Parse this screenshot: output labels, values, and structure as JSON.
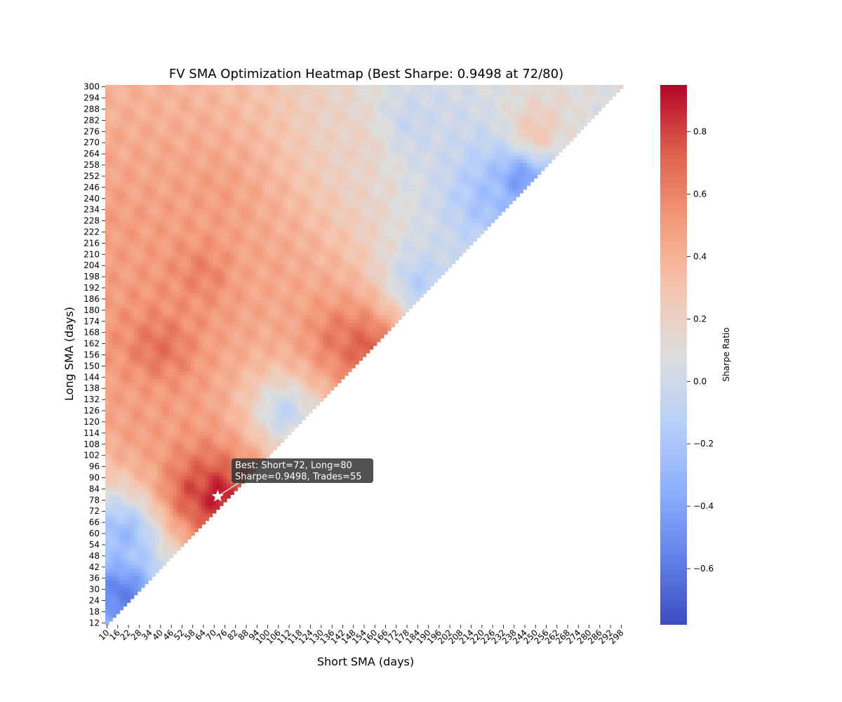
{
  "chart_data": {
    "type": "heatmap",
    "title": "FV SMA Optimization Heatmap (Best Sharpe: 0.9498 at 72/80)",
    "xlabel": "Short SMA (days)",
    "ylabel": "Long SMA (days)",
    "x_range": [
      10,
      300
    ],
    "y_range": [
      12,
      300
    ],
    "x_step": 2,
    "y_step": 2,
    "x_tick_labels": [
      "10",
      "16",
      "22",
      "28",
      "34",
      "40",
      "46",
      "52",
      "58",
      "64",
      "70",
      "76",
      "82",
      "88",
      "94",
      "100",
      "106",
      "112",
      "118",
      "124",
      "130",
      "136",
      "142",
      "148",
      "154",
      "160",
      "166",
      "172",
      "178",
      "184",
      "190",
      "196",
      "202",
      "208",
      "214",
      "220",
      "226",
      "232",
      "238",
      "244",
      "250",
      "256",
      "262",
      "268",
      "274",
      "280",
      "286",
      "292",
      "298"
    ],
    "y_tick_labels": [
      "300",
      "294",
      "288",
      "282",
      "276",
      "270",
      "264",
      "258",
      "252",
      "246",
      "240",
      "234",
      "228",
      "222",
      "216",
      "210",
      "204",
      "198",
      "192",
      "186",
      "180",
      "174",
      "168",
      "162",
      "156",
      "150",
      "144",
      "138",
      "132",
      "126",
      "120",
      "114",
      "108",
      "102",
      "96",
      "90",
      "84",
      "78",
      "72",
      "66",
      "60",
      "54",
      "48",
      "42",
      "36",
      "30",
      "24",
      "18",
      "12"
    ],
    "mask": "long > short only (upper-left triangle)",
    "colormap": "coolwarm",
    "colorbar": {
      "label": "Sharpe Ratio",
      "range": [
        -0.78,
        0.95
      ],
      "ticks": [
        "0.8",
        "0.6",
        "0.4",
        "0.2",
        "0.0",
        "−0.2",
        "−0.4",
        "−0.6"
      ]
    },
    "regions": [
      {
        "short": 72,
        "long": 80,
        "sharpe": 0.95
      },
      {
        "short": 60,
        "long": 82,
        "sharpe": 0.8
      },
      {
        "short": 154,
        "long": 160,
        "sharpe": 0.78
      },
      {
        "short": 140,
        "long": 165,
        "sharpe": 0.65
      },
      {
        "short": 40,
        "long": 160,
        "sharpe": 0.68
      },
      {
        "short": 64,
        "long": 200,
        "sharpe": 0.62
      },
      {
        "short": 30,
        "long": 120,
        "sharpe": 0.5
      },
      {
        "short": 100,
        "long": 200,
        "sharpe": 0.45
      },
      {
        "short": 70,
        "long": 240,
        "sharpe": 0.5
      },
      {
        "short": 20,
        "long": 220,
        "sharpe": 0.5
      },
      {
        "short": 18,
        "long": 28,
        "sharpe": -0.6
      },
      {
        "short": 20,
        "long": 60,
        "sharpe": -0.3
      },
      {
        "short": 242,
        "long": 250,
        "sharpe": -0.5
      },
      {
        "short": 225,
        "long": 240,
        "sharpe": -0.25
      },
      {
        "short": 185,
        "long": 195,
        "sharpe": -0.15
      },
      {
        "short": 110,
        "long": 125,
        "sharpe": -0.1
      },
      {
        "short": 180,
        "long": 280,
        "sharpe": -0.05
      },
      {
        "short": 150,
        "long": 270,
        "sharpe": 0.2
      },
      {
        "short": 250,
        "long": 275,
        "sharpe": 0.3
      }
    ],
    "best": {
      "short": 72,
      "long": 80,
      "sharpe": 0.9498,
      "trades": 55,
      "annotation_line1": "Best: Short=72, Long=80",
      "annotation_line2": "Sharpe=0.9498, Trades=55"
    }
  }
}
